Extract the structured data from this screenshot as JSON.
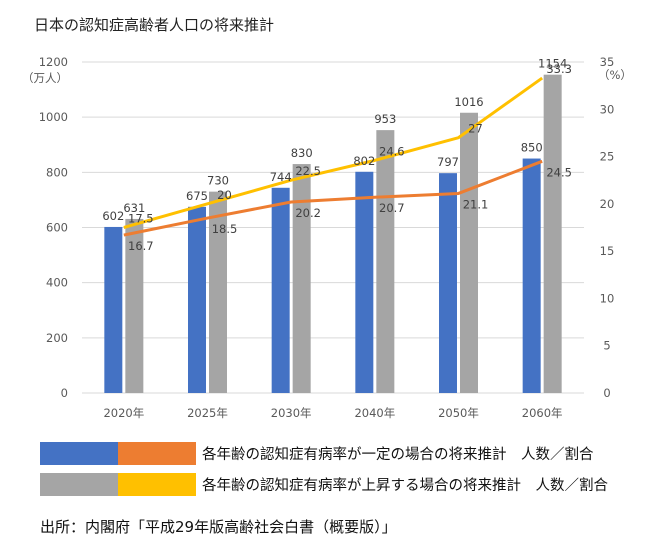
{
  "title": "日本の認知症高齢者人口の将来推計",
  "colors": {
    "const_bar": "#4472C4",
    "const_line": "#ED7D31",
    "rise_bar": "#A5A5A5",
    "rise_line": "#FFC000",
    "grid": "#D9D9D9",
    "axis_text": "#595959"
  },
  "chart_data": {
    "type": "bar",
    "title": "日本の認知症高齢者人口の将来推計",
    "categories": [
      "2020年",
      "2025年",
      "2030年",
      "2040年",
      "2050年",
      "2060年"
    ],
    "ylabel": "（万人）",
    "y2label": "（%）",
    "ylim": [
      0,
      1200
    ],
    "yticks": [
      0,
      200,
      400,
      600,
      800,
      1000,
      1200
    ],
    "y2lim": [
      0,
      35
    ],
    "y2ticks": [
      0,
      5,
      10,
      15,
      20,
      25,
      30,
      35
    ],
    "grid": true,
    "series": [
      {
        "kind": "bar",
        "axis": "left",
        "color_key": "const_bar",
        "values": [
          602,
          675,
          744,
          802,
          797,
          850
        ]
      },
      {
        "kind": "bar",
        "axis": "left",
        "color_key": "rise_bar",
        "values": [
          631,
          730,
          830,
          953,
          1016,
          1154
        ]
      },
      {
        "kind": "line",
        "axis": "right",
        "color_key": "const_line",
        "values": [
          16.7,
          18.5,
          20.2,
          20.7,
          21.1,
          24.5
        ]
      },
      {
        "kind": "line",
        "axis": "right",
        "color_key": "rise_line",
        "values": [
          17.5,
          20,
          22.5,
          24.6,
          27,
          33.3
        ]
      }
    ]
  },
  "legend": [
    {
      "text": "各年齢の認知症有病率が一定の場合の将来推計　人数／割合",
      "colors": [
        "const_bar",
        "const_line"
      ]
    },
    {
      "text": "各年齢の認知症有病率が上昇する場合の将来推計　人数／割合",
      "colors": [
        "rise_bar",
        "rise_line"
      ]
    }
  ],
  "source": "出所：内閣府「平成29年版高齢社会白書（概要版）」"
}
